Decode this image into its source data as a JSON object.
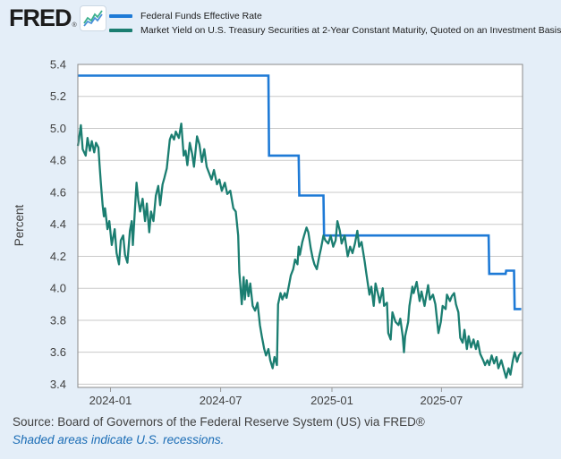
{
  "header": {
    "logo_text": "FRED",
    "registered_mark": "®",
    "legend": [
      {
        "label": "Federal Funds Effective Rate",
        "color": "#1e7ad6"
      },
      {
        "label": "Market Yield on U.S. Treasury Securities at 2-Year Constant Maturity, Quoted on an Investment Basis",
        "color": "#1b7e71"
      }
    ]
  },
  "footer": {
    "source": "Source: Board of Governors of the Federal Reserve System (US) via FRED®",
    "note": "Shaded areas indicate U.S. recessions.",
    "note_color": "#1a6cb5"
  },
  "chart_data": {
    "type": "line",
    "title": "",
    "xlabel": "",
    "ylabel": "Percent",
    "ylim": [
      3.38,
      5.4
    ],
    "y_ticks": [
      5.4,
      5.2,
      5.0,
      4.8,
      4.6,
      4.4,
      4.2,
      4.0,
      3.8,
      3.6,
      3.4
    ],
    "x_ticks": [
      "2024-01",
      "2024-07",
      "2025-01",
      "2025-07"
    ],
    "x_range": [
      "2023-11-08",
      "2025-11-12"
    ],
    "grid": true,
    "legend_position": "top",
    "colors": {
      "plot_background": "#ffffff",
      "page_background": "#e4eef8",
      "gridline": "#c9c9c9",
      "plot_border": "#8a8a8a",
      "tick_mark": "#999999",
      "axis_text": "#404040"
    },
    "series": [
      {
        "name": "Federal Funds Effective Rate",
        "color": "#1e7ad6",
        "style": "step",
        "segments": [
          {
            "from": "2023-11-08",
            "to": "2024-09-18",
            "value": 5.33
          },
          {
            "from": "2024-09-19",
            "to": "2024-11-07",
            "value": 4.83
          },
          {
            "from": "2024-11-08",
            "to": "2024-12-18",
            "value": 4.58
          },
          {
            "from": "2024-12-19",
            "to": "2025-09-17",
            "value": 4.33
          },
          {
            "from": "2025-09-18",
            "to": "2025-10-15",
            "value": 4.09
          },
          {
            "from": "2025-10-16",
            "to": "2025-10-29",
            "value": 4.11
          },
          {
            "from": "2025-10-30",
            "to": "2025-11-10",
            "value": 3.87
          }
        ]
      },
      {
        "name": "Market Yield on U.S. Treasury Securities at 2-Year Constant Maturity, Quoted on an Investment Basis",
        "color": "#1b7e71",
        "style": "line",
        "points": [
          [
            "2023-11-08",
            4.89
          ],
          [
            "2023-11-10",
            4.94
          ],
          [
            "2023-11-13",
            5.02
          ],
          [
            "2023-11-16",
            4.87
          ],
          [
            "2023-11-21",
            4.83
          ],
          [
            "2023-11-24",
            4.94
          ],
          [
            "2023-11-28",
            4.86
          ],
          [
            "2023-12-01",
            4.92
          ],
          [
            "2023-12-05",
            4.85
          ],
          [
            "2023-12-08",
            4.91
          ],
          [
            "2023-12-12",
            4.88
          ],
          [
            "2023-12-14",
            4.77
          ],
          [
            "2023-12-16",
            4.66
          ],
          [
            "2023-12-19",
            4.52
          ],
          [
            "2023-12-21",
            4.45
          ],
          [
            "2023-12-23",
            4.5
          ],
          [
            "2023-12-27",
            4.37
          ],
          [
            "2023-12-30",
            4.42
          ],
          [
            "2024-01-03",
            4.27
          ],
          [
            "2024-01-08",
            4.37
          ],
          [
            "2024-01-11",
            4.22
          ],
          [
            "2024-01-15",
            4.15
          ],
          [
            "2024-01-18",
            4.3
          ],
          [
            "2024-01-22",
            4.33
          ],
          [
            "2024-01-25",
            4.21
          ],
          [
            "2024-01-29",
            4.16
          ],
          [
            "2024-02-02",
            4.36
          ],
          [
            "2024-02-05",
            4.42
          ],
          [
            "2024-02-07",
            4.27
          ],
          [
            "2024-02-11",
            4.53
          ],
          [
            "2024-02-13",
            4.66
          ],
          [
            "2024-02-16",
            4.55
          ],
          [
            "2024-02-19",
            4.48
          ],
          [
            "2024-02-23",
            4.56
          ],
          [
            "2024-02-27",
            4.42
          ],
          [
            "2024-03-01",
            4.53
          ],
          [
            "2024-03-05",
            4.35
          ],
          [
            "2024-03-08",
            4.48
          ],
          [
            "2024-03-12",
            4.42
          ],
          [
            "2024-03-16",
            4.58
          ],
          [
            "2024-03-20",
            4.64
          ],
          [
            "2024-03-23",
            4.52
          ],
          [
            "2024-03-27",
            4.65
          ],
          [
            "2024-03-30",
            4.69
          ],
          [
            "2024-04-03",
            4.75
          ],
          [
            "2024-04-08",
            4.93
          ],
          [
            "2024-04-11",
            4.96
          ],
          [
            "2024-04-15",
            4.93
          ],
          [
            "2024-04-18",
            4.98
          ],
          [
            "2024-04-23",
            4.94
          ],
          [
            "2024-04-27",
            5.03
          ],
          [
            "2024-05-01",
            4.83
          ],
          [
            "2024-05-04",
            4.86
          ],
          [
            "2024-05-07",
            4.77
          ],
          [
            "2024-05-11",
            4.91
          ],
          [
            "2024-05-15",
            4.84
          ],
          [
            "2024-05-18",
            4.76
          ],
          [
            "2024-05-23",
            4.95
          ],
          [
            "2024-05-27",
            4.9
          ],
          [
            "2024-05-31",
            4.79
          ],
          [
            "2024-06-04",
            4.87
          ],
          [
            "2024-06-08",
            4.76
          ],
          [
            "2024-06-12",
            4.72
          ],
          [
            "2024-06-16",
            4.68
          ],
          [
            "2024-06-20",
            4.74
          ],
          [
            "2024-06-25",
            4.65
          ],
          [
            "2024-06-29",
            4.68
          ],
          [
            "2024-07-03",
            4.61
          ],
          [
            "2024-07-08",
            4.66
          ],
          [
            "2024-07-12",
            4.59
          ],
          [
            "2024-07-17",
            4.61
          ],
          [
            "2024-07-22",
            4.5
          ],
          [
            "2024-07-26",
            4.48
          ],
          [
            "2024-07-30",
            4.33
          ],
          [
            "2024-08-01",
            4.1
          ],
          [
            "2024-08-05",
            3.9
          ],
          [
            "2024-08-08",
            4.07
          ],
          [
            "2024-08-10",
            3.93
          ],
          [
            "2024-08-13",
            4.05
          ],
          [
            "2024-08-16",
            3.95
          ],
          [
            "2024-08-19",
            4.03
          ],
          [
            "2024-08-23",
            3.89
          ],
          [
            "2024-08-27",
            3.86
          ],
          [
            "2024-08-31",
            3.91
          ],
          [
            "2024-09-04",
            3.77
          ],
          [
            "2024-09-07",
            3.7
          ],
          [
            "2024-09-11",
            3.62
          ],
          [
            "2024-09-14",
            3.58
          ],
          [
            "2024-09-18",
            3.62
          ],
          [
            "2024-09-21",
            3.55
          ],
          [
            "2024-09-25",
            3.5
          ],
          [
            "2024-09-28",
            3.57
          ],
          [
            "2024-10-02",
            3.52
          ],
          [
            "2024-10-04",
            3.9
          ],
          [
            "2024-10-08",
            3.97
          ],
          [
            "2024-10-11",
            3.93
          ],
          [
            "2024-10-15",
            3.97
          ],
          [
            "2024-10-18",
            3.94
          ],
          [
            "2024-10-22",
            4.02
          ],
          [
            "2024-10-25",
            4.08
          ],
          [
            "2024-10-29",
            4.12
          ],
          [
            "2024-11-01",
            4.18
          ],
          [
            "2024-11-05",
            4.15
          ],
          [
            "2024-11-07",
            4.26
          ],
          [
            "2024-11-09",
            4.21
          ],
          [
            "2024-11-13",
            4.29
          ],
          [
            "2024-11-16",
            4.33
          ],
          [
            "2024-11-20",
            4.38
          ],
          [
            "2024-11-23",
            4.35
          ],
          [
            "2024-11-27",
            4.25
          ],
          [
            "2024-11-30",
            4.19
          ],
          [
            "2024-12-03",
            4.15
          ],
          [
            "2024-12-07",
            4.12
          ],
          [
            "2024-12-11",
            4.2
          ],
          [
            "2024-12-14",
            4.25
          ],
          [
            "2024-12-18",
            4.33
          ],
          [
            "2024-12-21",
            4.3
          ],
          [
            "2024-12-26",
            4.28
          ],
          [
            "2024-12-30",
            4.33
          ],
          [
            "2025-01-03",
            4.26
          ],
          [
            "2025-01-07",
            4.3
          ],
          [
            "2025-01-10",
            4.42
          ],
          [
            "2025-01-14",
            4.36
          ],
          [
            "2025-01-17",
            4.28
          ],
          [
            "2025-01-22",
            4.33
          ],
          [
            "2025-01-27",
            4.2
          ],
          [
            "2025-01-31",
            4.26
          ],
          [
            "2025-02-04",
            4.22
          ],
          [
            "2025-02-08",
            4.28
          ],
          [
            "2025-02-12",
            4.36
          ],
          [
            "2025-02-15",
            4.26
          ],
          [
            "2025-02-19",
            4.29
          ],
          [
            "2025-02-24",
            4.17
          ],
          [
            "2025-02-27",
            4.09
          ],
          [
            "2025-03-04",
            3.96
          ],
          [
            "2025-03-07",
            4.01
          ],
          [
            "2025-03-11",
            3.89
          ],
          [
            "2025-03-14",
            4.03
          ],
          [
            "2025-03-19",
            3.95
          ],
          [
            "2025-03-21",
            3.91
          ],
          [
            "2025-03-26",
            4.0
          ],
          [
            "2025-03-28",
            3.89
          ],
          [
            "2025-04-02",
            3.91
          ],
          [
            "2025-04-04",
            3.72
          ],
          [
            "2025-04-08",
            3.68
          ],
          [
            "2025-04-11",
            3.85
          ],
          [
            "2025-04-16",
            3.79
          ],
          [
            "2025-04-21",
            3.77
          ],
          [
            "2025-04-24",
            3.81
          ],
          [
            "2025-04-28",
            3.7
          ],
          [
            "2025-04-30",
            3.6
          ],
          [
            "2025-05-02",
            3.7
          ],
          [
            "2025-05-07",
            3.79
          ],
          [
            "2025-05-09",
            3.89
          ],
          [
            "2025-05-14",
            4.01
          ],
          [
            "2025-05-16",
            3.97
          ],
          [
            "2025-05-21",
            4.04
          ],
          [
            "2025-05-26",
            3.92
          ],
          [
            "2025-05-29",
            3.98
          ],
          [
            "2025-06-03",
            3.89
          ],
          [
            "2025-06-09",
            4.02
          ],
          [
            "2025-06-12",
            3.93
          ],
          [
            "2025-06-17",
            3.96
          ],
          [
            "2025-06-21",
            3.9
          ],
          [
            "2025-06-26",
            3.72
          ],
          [
            "2025-06-30",
            3.79
          ],
          [
            "2025-07-03",
            3.89
          ],
          [
            "2025-07-08",
            3.87
          ],
          [
            "2025-07-10",
            3.96
          ],
          [
            "2025-07-15",
            3.92
          ],
          [
            "2025-07-18",
            3.95
          ],
          [
            "2025-07-22",
            3.97
          ],
          [
            "2025-07-25",
            3.9
          ],
          [
            "2025-07-29",
            3.85
          ],
          [
            "2025-08-01",
            3.69
          ],
          [
            "2025-08-05",
            3.66
          ],
          [
            "2025-08-08",
            3.74
          ],
          [
            "2025-08-12",
            3.62
          ],
          [
            "2025-08-15",
            3.7
          ],
          [
            "2025-08-19",
            3.63
          ],
          [
            "2025-08-23",
            3.68
          ],
          [
            "2025-08-27",
            3.62
          ],
          [
            "2025-08-30",
            3.67
          ],
          [
            "2025-09-03",
            3.59
          ],
          [
            "2025-09-08",
            3.55
          ],
          [
            "2025-09-11",
            3.52
          ],
          [
            "2025-09-15",
            3.55
          ],
          [
            "2025-09-18",
            3.52
          ],
          [
            "2025-09-22",
            3.58
          ],
          [
            "2025-09-26",
            3.53
          ],
          [
            "2025-09-30",
            3.57
          ],
          [
            "2025-10-03",
            3.5
          ],
          [
            "2025-10-08",
            3.55
          ],
          [
            "2025-10-13",
            3.48
          ],
          [
            "2025-10-16",
            3.44
          ],
          [
            "2025-10-20",
            3.5
          ],
          [
            "2025-10-23",
            3.46
          ],
          [
            "2025-10-27",
            3.55
          ],
          [
            "2025-10-30",
            3.6
          ],
          [
            "2025-11-03",
            3.54
          ],
          [
            "2025-11-06",
            3.58
          ],
          [
            "2025-11-10",
            3.6
          ]
        ]
      }
    ]
  }
}
